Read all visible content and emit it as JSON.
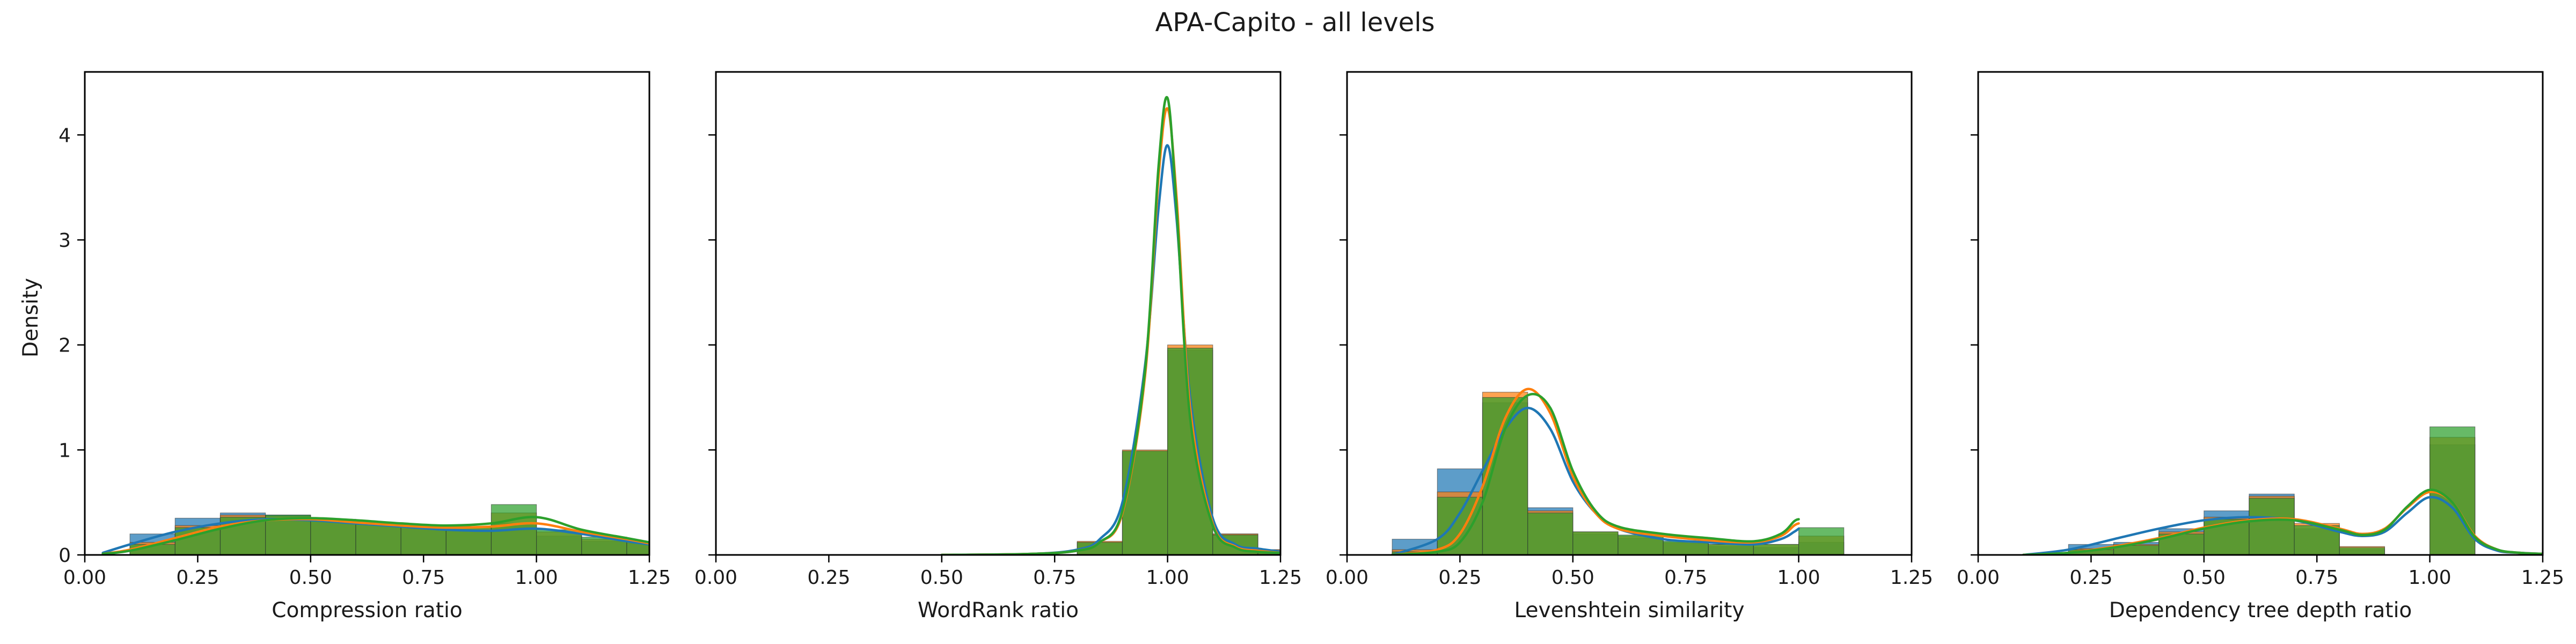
{
  "figure": {
    "title": "APA-Capito - all levels",
    "ylabel": "Density"
  },
  "series_colors": [
    "#1f77b4",
    "#ff7f0e",
    "#2ca02c"
  ],
  "chart_data": [
    {
      "type": "histogram",
      "xlabel": "Compression ratio",
      "xlim": [
        0,
        1.25
      ],
      "ylim": [
        0,
        4.6
      ],
      "xticks": [
        "0.00",
        "0.25",
        "0.50",
        "0.75",
        "1.00",
        "1.25"
      ],
      "yticks": [
        "0",
        "1",
        "2",
        "3",
        "4"
      ],
      "bin_edges": [
        0.0,
        0.1,
        0.2,
        0.3,
        0.4,
        0.5,
        0.6,
        0.7,
        0.8,
        0.9,
        1.0,
        1.1,
        1.2,
        1.3
      ],
      "series": [
        {
          "color": "#1f77b4",
          "values": [
            0.0,
            0.2,
            0.35,
            0.4,
            0.38,
            0.32,
            0.29,
            0.25,
            0.24,
            0.3,
            0.18,
            0.13,
            0.11
          ],
          "kde": {
            "x": [
              0.04,
              0.1,
              0.2,
              0.3,
              0.4,
              0.5,
              0.6,
              0.7,
              0.8,
              0.9,
              1.0,
              1.1,
              1.2,
              1.25
            ],
            "y": [
              0.02,
              0.1,
              0.22,
              0.3,
              0.34,
              0.33,
              0.3,
              0.27,
              0.24,
              0.23,
              0.25,
              0.2,
              0.13,
              0.1
            ]
          }
        },
        {
          "color": "#ff7f0e",
          "values": [
            0.0,
            0.12,
            0.28,
            0.38,
            0.37,
            0.33,
            0.29,
            0.27,
            0.26,
            0.4,
            0.22,
            0.15,
            0.12
          ],
          "kde": {
            "x": [
              0.04,
              0.1,
              0.2,
              0.3,
              0.4,
              0.5,
              0.6,
              0.7,
              0.8,
              0.9,
              1.0,
              1.1,
              1.2,
              1.25
            ],
            "y": [
              0.01,
              0.05,
              0.16,
              0.27,
              0.33,
              0.34,
              0.31,
              0.28,
              0.26,
              0.27,
              0.3,
              0.22,
              0.15,
              0.11
            ]
          }
        },
        {
          "color": "#2ca02c",
          "values": [
            0.0,
            0.1,
            0.26,
            0.36,
            0.38,
            0.34,
            0.3,
            0.28,
            0.27,
            0.48,
            0.24,
            0.17,
            0.13
          ],
          "kde": {
            "x": [
              0.04,
              0.1,
              0.2,
              0.3,
              0.4,
              0.5,
              0.6,
              0.7,
              0.8,
              0.9,
              1.0,
              1.1,
              1.2,
              1.25
            ],
            "y": [
              0.01,
              0.04,
              0.14,
              0.25,
              0.33,
              0.35,
              0.33,
              0.3,
              0.28,
              0.3,
              0.36,
              0.24,
              0.16,
              0.12
            ]
          }
        }
      ]
    },
    {
      "type": "histogram",
      "xlabel": "WordRank ratio",
      "xlim": [
        0,
        1.25
      ],
      "ylim": [
        0,
        4.6
      ],
      "xticks": [
        "0.00",
        "0.25",
        "0.50",
        "0.75",
        "1.00",
        "1.25"
      ],
      "yticks": [
        "0",
        "1",
        "2",
        "3",
        "4"
      ],
      "bin_edges": [
        0.8,
        0.9,
        1.0,
        1.1,
        1.2,
        1.3
      ],
      "series": [
        {
          "color": "#1f77b4",
          "values": [
            0.12,
            0.98,
            1.95,
            0.2,
            0.05
          ],
          "kde": {
            "x": [
              0.5,
              0.7,
              0.8,
              0.85,
              0.9,
              0.95,
              0.98,
              1.0,
              1.02,
              1.05,
              1.1,
              1.15,
              1.2,
              1.25
            ],
            "y": [
              0.0,
              0.01,
              0.05,
              0.15,
              0.5,
              1.8,
              3.3,
              3.9,
              3.2,
              1.5,
              0.35,
              0.1,
              0.06,
              0.03
            ]
          }
        },
        {
          "color": "#ff7f0e",
          "values": [
            0.13,
            1.0,
            2.0,
            0.2,
            0.05
          ],
          "kde": {
            "x": [
              0.5,
              0.7,
              0.8,
              0.85,
              0.9,
              0.95,
              0.98,
              1.0,
              1.02,
              1.05,
              1.1,
              1.15,
              1.2,
              1.25
            ],
            "y": [
              0.0,
              0.01,
              0.04,
              0.12,
              0.4,
              1.7,
              3.6,
              4.25,
              3.4,
              1.4,
              0.3,
              0.08,
              0.04,
              0.02
            ]
          }
        },
        {
          "color": "#2ca02c",
          "values": [
            0.12,
            0.99,
            1.97,
            0.19,
            0.04
          ],
          "kde": {
            "x": [
              0.5,
              0.7,
              0.8,
              0.85,
              0.9,
              0.95,
              0.98,
              1.0,
              1.02,
              1.05,
              1.1,
              1.15,
              1.2,
              1.25
            ],
            "y": [
              0.0,
              0.01,
              0.04,
              0.12,
              0.42,
              1.75,
              3.7,
              4.35,
              3.3,
              1.3,
              0.28,
              0.07,
              0.03,
              0.02
            ]
          }
        }
      ]
    },
    {
      "type": "histogram",
      "xlabel": "Levenshtein similarity",
      "xlim": [
        0,
        1.25
      ],
      "ylim": [
        0,
        4.6
      ],
      "xticks": [
        "0.00",
        "0.25",
        "0.50",
        "0.75",
        "1.00",
        "1.25"
      ],
      "yticks": [
        "0",
        "1",
        "2",
        "3",
        "4"
      ],
      "bin_edges": [
        0.1,
        0.2,
        0.3,
        0.4,
        0.5,
        0.6,
        0.7,
        0.8,
        0.9,
        1.0,
        1.1
      ],
      "series": [
        {
          "color": "#1f77b4",
          "values": [
            0.15,
            0.82,
            1.45,
            0.45,
            0.2,
            0.16,
            0.11,
            0.08,
            0.07,
            0.12
          ],
          "kde": {
            "x": [
              0.1,
              0.2,
              0.25,
              0.3,
              0.35,
              0.4,
              0.45,
              0.5,
              0.55,
              0.6,
              0.7,
              0.8,
              0.9,
              0.96,
              0.99,
              1.0
            ],
            "y": [
              0.0,
              0.15,
              0.4,
              0.8,
              1.2,
              1.4,
              1.2,
              0.7,
              0.4,
              0.25,
              0.15,
              0.12,
              0.1,
              0.15,
              0.22,
              0.25
            ]
          }
        },
        {
          "color": "#ff7f0e",
          "values": [
            0.05,
            0.6,
            1.55,
            0.42,
            0.22,
            0.18,
            0.12,
            0.1,
            0.1,
            0.18
          ],
          "kde": {
            "x": [
              0.1,
              0.2,
              0.25,
              0.3,
              0.35,
              0.4,
              0.45,
              0.5,
              0.55,
              0.6,
              0.7,
              0.8,
              0.9,
              0.96,
              0.99,
              1.0
            ],
            "y": [
              0.0,
              0.05,
              0.2,
              0.65,
              1.3,
              1.58,
              1.35,
              0.75,
              0.4,
              0.25,
              0.18,
              0.14,
              0.12,
              0.18,
              0.28,
              0.3
            ]
          }
        },
        {
          "color": "#2ca02c",
          "values": [
            0.03,
            0.55,
            1.5,
            0.4,
            0.22,
            0.19,
            0.13,
            0.1,
            0.1,
            0.26
          ],
          "kde": {
            "x": [
              0.1,
              0.2,
              0.25,
              0.3,
              0.35,
              0.4,
              0.45,
              0.5,
              0.55,
              0.6,
              0.7,
              0.8,
              0.9,
              0.96,
              0.99,
              1.0
            ],
            "y": [
              0.0,
              0.03,
              0.12,
              0.5,
              1.2,
              1.52,
              1.4,
              0.8,
              0.42,
              0.27,
              0.2,
              0.16,
              0.13,
              0.2,
              0.32,
              0.34
            ]
          }
        }
      ]
    },
    {
      "type": "histogram",
      "xlabel": "Dependency tree depth ratio",
      "xlim": [
        0,
        1.25
      ],
      "ylim": [
        0,
        4.6
      ],
      "xticks": [
        "0.00",
        "0.25",
        "0.50",
        "0.75",
        "1.00",
        "1.25"
      ],
      "yticks": [
        "0",
        "1",
        "2",
        "3",
        "4"
      ],
      "bin_edges": [
        0.2,
        0.3,
        0.4,
        0.5,
        0.6,
        0.7,
        0.8,
        0.9,
        1.0,
        1.1,
        1.2
      ],
      "series": [
        {
          "color": "#1f77b4",
          "values": [
            0.1,
            0.12,
            0.25,
            0.42,
            0.58,
            0.25,
            0.05,
            0.0,
            1.05,
            0.0
          ],
          "kde": {
            "x": [
              0.1,
              0.2,
              0.3,
              0.4,
              0.5,
              0.6,
              0.7,
              0.8,
              0.85,
              0.9,
              0.95,
              1.0,
              1.05,
              1.1,
              1.15,
              1.2,
              1.25
            ],
            "y": [
              0.0,
              0.05,
              0.15,
              0.25,
              0.33,
              0.36,
              0.33,
              0.22,
              0.18,
              0.22,
              0.4,
              0.55,
              0.45,
              0.15,
              0.04,
              0.02,
              0.01
            ]
          }
        },
        {
          "color": "#ff7f0e",
          "values": [
            0.06,
            0.1,
            0.22,
            0.36,
            0.56,
            0.3,
            0.08,
            0.0,
            1.12,
            0.0
          ],
          "kde": {
            "x": [
              0.1,
              0.2,
              0.3,
              0.4,
              0.5,
              0.6,
              0.7,
              0.8,
              0.85,
              0.9,
              0.95,
              1.0,
              1.05,
              1.1,
              1.15,
              1.2,
              1.25
            ],
            "y": [
              0.0,
              0.02,
              0.08,
              0.16,
              0.26,
              0.33,
              0.34,
              0.25,
              0.2,
              0.25,
              0.45,
              0.6,
              0.5,
              0.18,
              0.05,
              0.02,
              0.01
            ]
          }
        },
        {
          "color": "#2ca02c",
          "values": [
            0.05,
            0.09,
            0.2,
            0.34,
            0.54,
            0.28,
            0.07,
            0.0,
            1.22,
            0.0
          ],
          "kde": {
            "x": [
              0.1,
              0.2,
              0.3,
              0.4,
              0.5,
              0.6,
              0.7,
              0.8,
              0.85,
              0.9,
              0.95,
              1.0,
              1.05,
              1.1,
              1.15,
              1.2,
              1.25
            ],
            "y": [
              0.0,
              0.02,
              0.07,
              0.15,
              0.25,
              0.32,
              0.33,
              0.24,
              0.19,
              0.24,
              0.46,
              0.62,
              0.5,
              0.17,
              0.05,
              0.02,
              0.01
            ]
          }
        }
      ]
    }
  ]
}
